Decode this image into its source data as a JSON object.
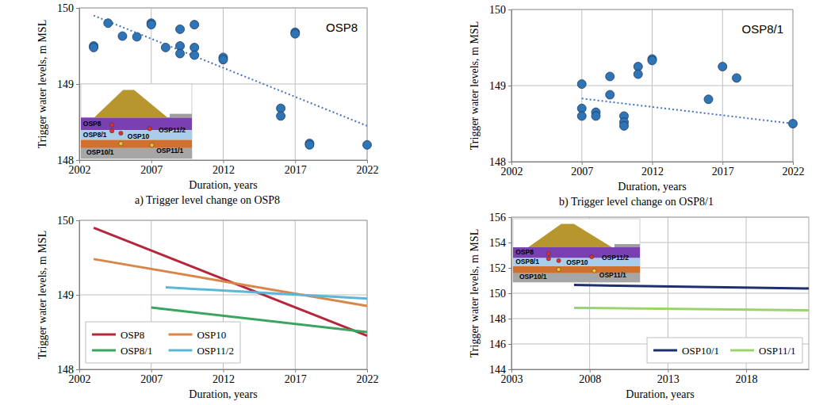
{
  "chart_data": [
    {
      "type": "scatter",
      "title": "OSP8",
      "caption": "a) Trigger level change on OSP8",
      "x_label": "Duration, years",
      "y_label": "Trigger water levels, m MSL",
      "xlim": [
        2002,
        2022
      ],
      "ylim": [
        148,
        150
      ],
      "xticks": [
        2002,
        2007,
        2012,
        2017,
        2022
      ],
      "yticks": [
        148,
        149,
        150
      ],
      "grid": true,
      "annotations": [
        "OSP8",
        "OSP8/1",
        "OSP10",
        "OSP11/2",
        "OSP10/1",
        "OSP11/1"
      ],
      "series": [
        {
          "type": "scatter",
          "marker": "circle",
          "color": "#2e75b6",
          "x": [
            2003,
            2003,
            2004,
            2005,
            2006,
            2007,
            2007,
            2008,
            2009,
            2009,
            2009,
            2010,
            2010,
            2010,
            2012,
            2012,
            2016,
            2016,
            2017,
            2017,
            2018,
            2018,
            2022
          ],
          "values": [
            149.5,
            149.48,
            149.8,
            149.63,
            149.62,
            149.8,
            149.78,
            149.48,
            149.72,
            149.5,
            149.4,
            149.78,
            149.48,
            149.38,
            149.35,
            149.32,
            148.68,
            148.58,
            149.68,
            149.66,
            148.22,
            148.2,
            148.2
          ]
        },
        {
          "type": "line",
          "line_style": "dotted",
          "color": "#4472c4",
          "x": [
            2003,
            2022
          ],
          "values": [
            149.9,
            148.45
          ]
        }
      ]
    },
    {
      "type": "scatter",
      "title": "OSP8/1",
      "caption": "b) Trigger level change on OSP8/1",
      "x_label": "Duration, years",
      "y_label": "Trigger water levels, m MSL",
      "xlim": [
        2002,
        2022
      ],
      "ylim": [
        148,
        150
      ],
      "xticks": [
        2002,
        2007,
        2012,
        2017,
        2022
      ],
      "yticks": [
        148,
        149,
        150
      ],
      "grid": true,
      "series": [
        {
          "type": "scatter",
          "marker": "circle",
          "color": "#2e75b6",
          "x": [
            2007,
            2007,
            2007,
            2008,
            2008,
            2009,
            2009,
            2010,
            2010,
            2010,
            2011,
            2011,
            2012,
            2012,
            2016,
            2017,
            2018,
            2022
          ],
          "values": [
            149.02,
            148.7,
            148.6,
            148.65,
            148.6,
            149.12,
            148.88,
            148.6,
            148.52,
            148.47,
            149.25,
            149.15,
            149.35,
            149.33,
            148.82,
            149.25,
            149.1,
            148.5
          ]
        },
        {
          "type": "line",
          "line_style": "dotted",
          "color": "#4472c4",
          "x": [
            2007,
            2022
          ],
          "values": [
            148.83,
            148.5
          ]
        }
      ]
    },
    {
      "type": "line",
      "x_label": "Duration, years",
      "y_label": "Trigger water levels, m MSL",
      "xlim": [
        2002,
        2022
      ],
      "ylim": [
        148,
        150
      ],
      "xticks": [
        2002,
        2007,
        2012,
        2017,
        2022
      ],
      "yticks": [
        148,
        149,
        150
      ],
      "grid": true,
      "legend": "lower left",
      "series": [
        {
          "name": "OSP8",
          "color": "#b5283b",
          "x": [
            2003,
            2022
          ],
          "values": [
            149.9,
            148.45
          ]
        },
        {
          "name": "OSP10",
          "color": "#d9864a",
          "x": [
            2003,
            2022
          ],
          "values": [
            149.48,
            148.85
          ]
        },
        {
          "name": "OSP8/1",
          "color": "#3aa55f",
          "x": [
            2007,
            2022
          ],
          "values": [
            148.83,
            148.5
          ]
        },
        {
          "name": "OSP11/2",
          "color": "#5bb7d6",
          "x": [
            2008,
            2022
          ],
          "values": [
            149.1,
            148.95
          ]
        }
      ]
    },
    {
      "type": "line",
      "x_label": "Duration, years",
      "y_label": "Trigger water levels, m MSL",
      "xlim": [
        2003,
        2022
      ],
      "ylim": [
        144,
        156
      ],
      "xticks": [
        2003,
        2008,
        2013,
        2018
      ],
      "yticks": [
        144,
        146,
        148,
        150,
        152,
        154,
        156
      ],
      "grid": true,
      "legend": "lower right",
      "annotations": [
        "OSP8",
        "OSP8/1",
        "OSP10",
        "OSP11/2",
        "OSP10/1",
        "OSP11/1"
      ],
      "series": [
        {
          "name": "OSP10/1",
          "color": "#1f2f6b",
          "x": [
            2007,
            2022
          ],
          "values": [
            150.65,
            150.38
          ]
        },
        {
          "name": "OSP11/1",
          "color": "#9ad36a",
          "x": [
            2007,
            2022
          ],
          "values": [
            148.85,
            148.65
          ]
        }
      ]
    }
  ]
}
